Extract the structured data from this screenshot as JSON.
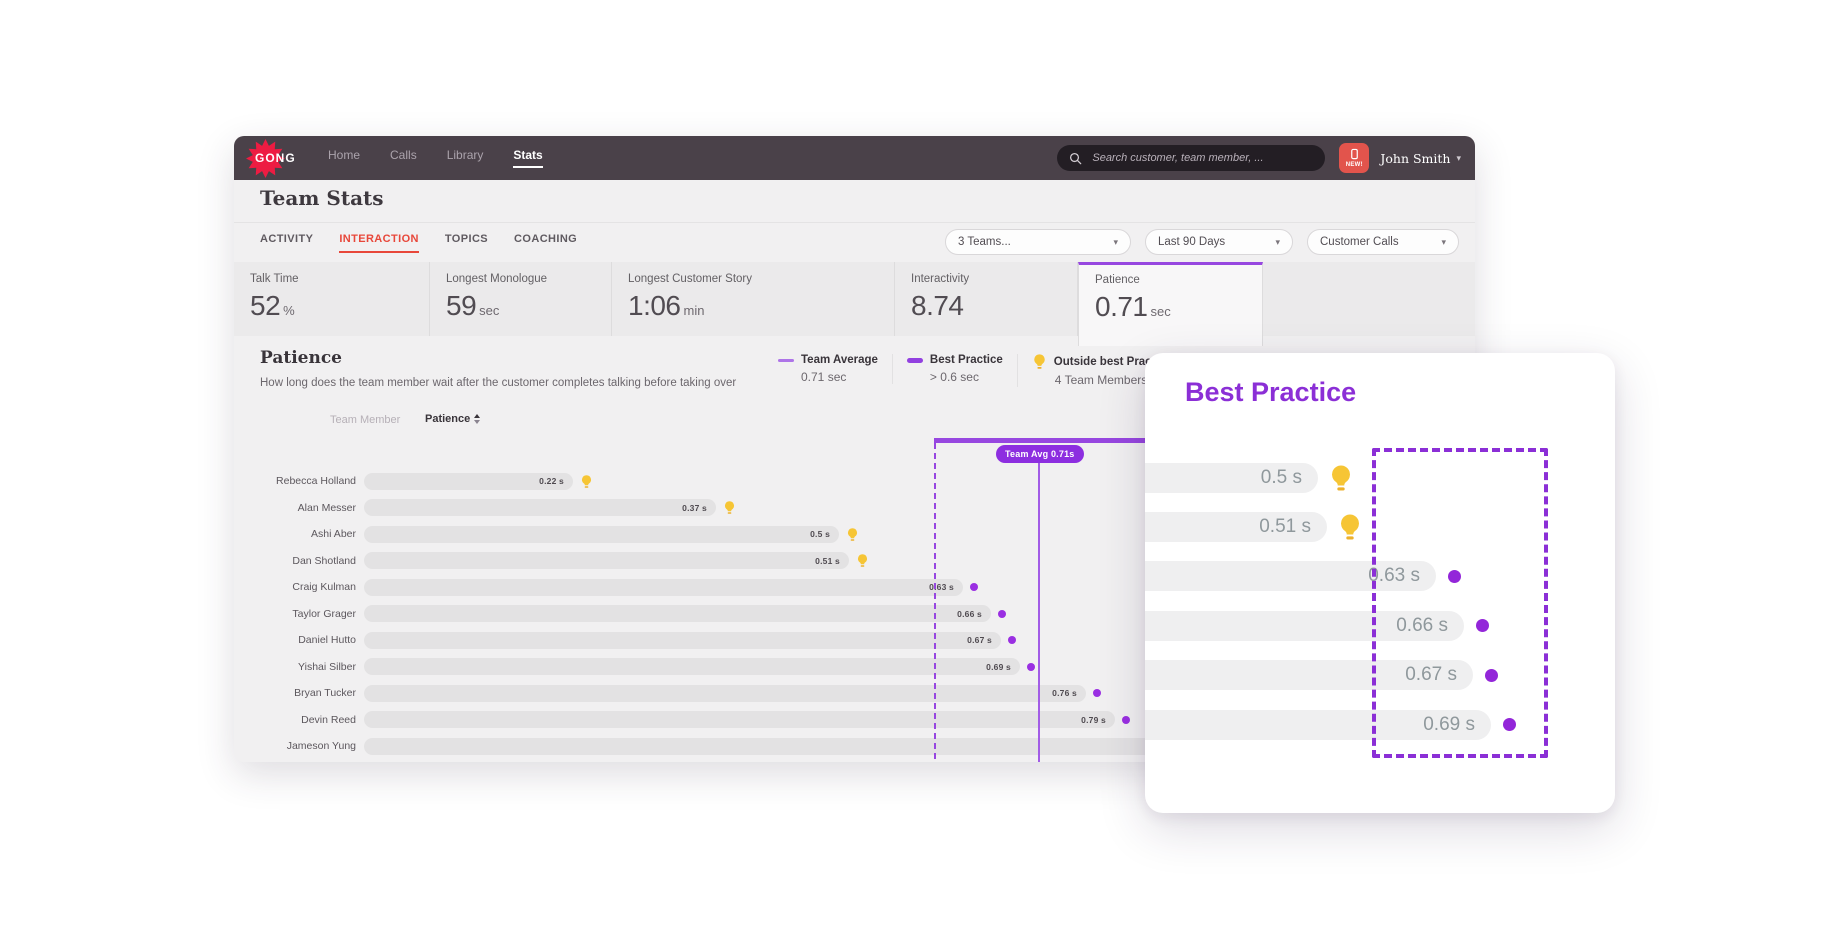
{
  "navbar": {
    "logo_text": "GONG",
    "items": [
      {
        "label": "Home"
      },
      {
        "label": "Calls"
      },
      {
        "label": "Library"
      },
      {
        "label": "Stats",
        "active": true
      }
    ],
    "search_placeholder": "Search customer, team member, ...",
    "new_badge": "NEW!",
    "user_name": "John Smith"
  },
  "page": {
    "title": "Team Stats",
    "tabs": [
      {
        "label": "ACTIVITY"
      },
      {
        "label": "INTERACTION",
        "active": true
      },
      {
        "label": "TOPICS"
      },
      {
        "label": "COACHING"
      }
    ],
    "filters": [
      {
        "value": "3 Teams..."
      },
      {
        "value": "Last 90 Days"
      },
      {
        "value": "Customer Calls"
      }
    ]
  },
  "metrics": [
    {
      "label": "Talk Time",
      "value": "52",
      "unit": "%"
    },
    {
      "label": "Longest Monologue",
      "value": "59",
      "unit": "sec"
    },
    {
      "label": "Longest Customer Story",
      "value": "1:06",
      "unit": "min"
    },
    {
      "label": "Interactivity",
      "value": "8.74",
      "unit": ""
    },
    {
      "label": "Patience",
      "value": "0.71",
      "unit": "sec",
      "active": true
    }
  ],
  "section": {
    "title": "Patience",
    "description": "How long does the team member wait after the customer completes talking before taking over",
    "legend": [
      {
        "label": "Team Average",
        "value": "0.71 sec",
        "marker": "thin-line"
      },
      {
        "label": "Best Practice",
        "value": "> 0.6 sec",
        "marker": "thick-line"
      },
      {
        "label": "Outside best Practice",
        "value": "4 Team Members",
        "marker": "bulb"
      }
    ],
    "columns": {
      "member": "Team Member",
      "metric": "Patience"
    },
    "team_avg_badge": "Team Avg 0.71s"
  },
  "chart_data": {
    "type": "bar",
    "orientation": "horizontal",
    "title": "Patience",
    "unit": "seconds",
    "team_average": 0.71,
    "best_practice_threshold": 0.6,
    "annotation": "Team Avg 0.71s",
    "members": [
      {
        "name": "Rebecca Holland",
        "value": 0.22,
        "label": "0.22 s",
        "marker": "bulb"
      },
      {
        "name": "Alan Messer",
        "value": 0.37,
        "label": "0.37 s",
        "marker": "bulb"
      },
      {
        "name": "Ashi Aber",
        "value": 0.5,
        "label": "0.5 s",
        "marker": "bulb"
      },
      {
        "name": "Dan Shotland",
        "value": 0.51,
        "label": "0.51 s",
        "marker": "bulb"
      },
      {
        "name": "Craig Kulman",
        "value": 0.63,
        "label": "0.63 s",
        "marker": "dot"
      },
      {
        "name": "Taylor Grager",
        "value": 0.66,
        "label": "0.66 s",
        "marker": "dot"
      },
      {
        "name": "Daniel Hutto",
        "value": 0.67,
        "label": "0.67 s",
        "marker": "dot"
      },
      {
        "name": "Yishai Silber",
        "value": 0.69,
        "label": "0.69 s",
        "marker": "dot"
      },
      {
        "name": "Bryan Tucker",
        "value": 0.76,
        "label": "0.76 s",
        "marker": "dot"
      },
      {
        "name": "Devin Reed",
        "value": 0.79,
        "label": "0.79 s",
        "marker": "dot"
      },
      {
        "name": "Jameson Yung",
        "value": null,
        "label": "",
        "marker": "none"
      }
    ]
  },
  "overlay": {
    "title": "Best Practice",
    "rows": [
      {
        "label": "0.5 s",
        "value": 0.5,
        "marker": "bulb"
      },
      {
        "label": "0.51 s",
        "value": 0.51,
        "marker": "bulb"
      },
      {
        "label": "0.63 s",
        "value": 0.63,
        "marker": "dot"
      },
      {
        "label": "0.66 s",
        "value": 0.66,
        "marker": "dot"
      },
      {
        "label": "0.67 s",
        "value": 0.67,
        "marker": "dot"
      },
      {
        "label": "0.69 s",
        "value": 0.69,
        "marker": "dot"
      }
    ]
  },
  "colors": {
    "navbar_bg": "#4a4149",
    "brand_red": "#ed1c42",
    "tab_active_red": "#e8473a",
    "accent_purple": "#9747e0",
    "overlay_purple": "#8b2fd6",
    "bulb_yellow": "#f6c535",
    "bar_gray": "#e3e2e3",
    "page_bg": "#f1f0f1"
  }
}
